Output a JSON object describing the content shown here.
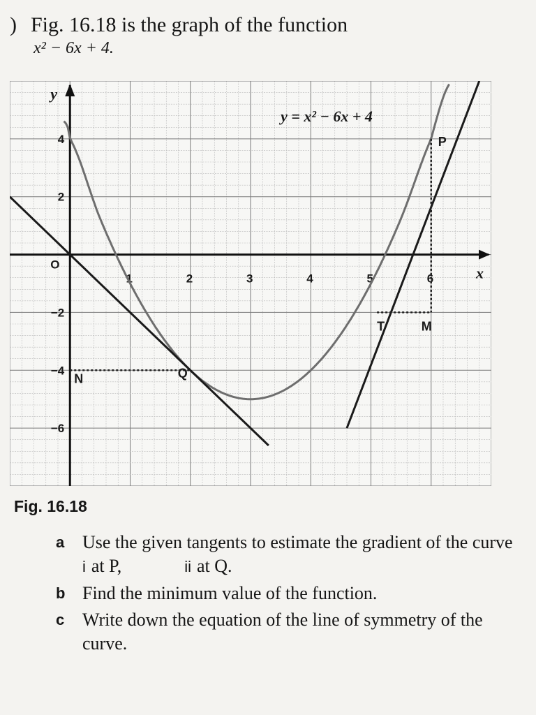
{
  "intro": {
    "paren": ")",
    "line1": "Fig. 16.18 is the graph of the function",
    "line2": "x² − 6x + 4."
  },
  "figure_caption": "Fig. 16.18",
  "questions": [
    {
      "letter": "a",
      "text": "Use the given tangents to estimate the gradient of the curve",
      "subparts": [
        {
          "label": "i",
          "text": "at P,"
        },
        {
          "label": "ii",
          "text": "at Q."
        }
      ]
    },
    {
      "letter": "b",
      "text": "Find the minimum value of the function."
    },
    {
      "letter": "c",
      "text": "Write down the equation of the line of symmetry of the curve."
    }
  ],
  "chart_data": {
    "type": "line",
    "title": "",
    "xlabel": "x",
    "ylabel": "y",
    "xlim": [
      -1.0,
      7.0
    ],
    "ylim": [
      -8.0,
      6.0
    ],
    "grid": true,
    "x_ticks": [
      1,
      2,
      3,
      4,
      5,
      6
    ],
    "x_tick_labels": [
      "1",
      "2",
      "3",
      "4",
      "5",
      "6"
    ],
    "y_ticks": [
      4,
      2,
      -2,
      -4,
      -6
    ],
    "y_tick_labels": [
      "4",
      "2",
      "−2",
      "−4",
      "−6"
    ],
    "origin_label": "O",
    "curve_label": "y = x² − 6x + 4",
    "series": [
      {
        "name": "y = x² − 6x + 4",
        "x": [
          -0.1,
          0,
          0.5,
          1,
          1.5,
          2,
          2.5,
          3,
          3.5,
          4,
          4.5,
          5,
          5.5,
          6,
          6.3
        ],
        "y": [
          4.61,
          4,
          1.25,
          -1,
          -2.75,
          -4,
          -4.75,
          -5,
          -4.75,
          -4,
          -2.75,
          -1,
          1.25,
          4,
          5.89
        ]
      }
    ],
    "tangents": [
      {
        "name": "tangent at Q",
        "x": [
          -1.0,
          3.3
        ],
        "y": [
          2.0,
          -6.6
        ]
      },
      {
        "name": "tangent at P",
        "x": [
          4.6,
          6.8
        ],
        "y": [
          -6.0,
          6.0
        ]
      }
    ],
    "points": [
      {
        "label": "P",
        "x": 6,
        "y": 4
      },
      {
        "label": "Q",
        "x": 2,
        "y": -4
      },
      {
        "label": "N",
        "x": 0,
        "y": -4
      },
      {
        "label": "T",
        "x": 5.1,
        "y": -2
      },
      {
        "label": "M",
        "x": 6,
        "y": -2
      }
    ]
  }
}
